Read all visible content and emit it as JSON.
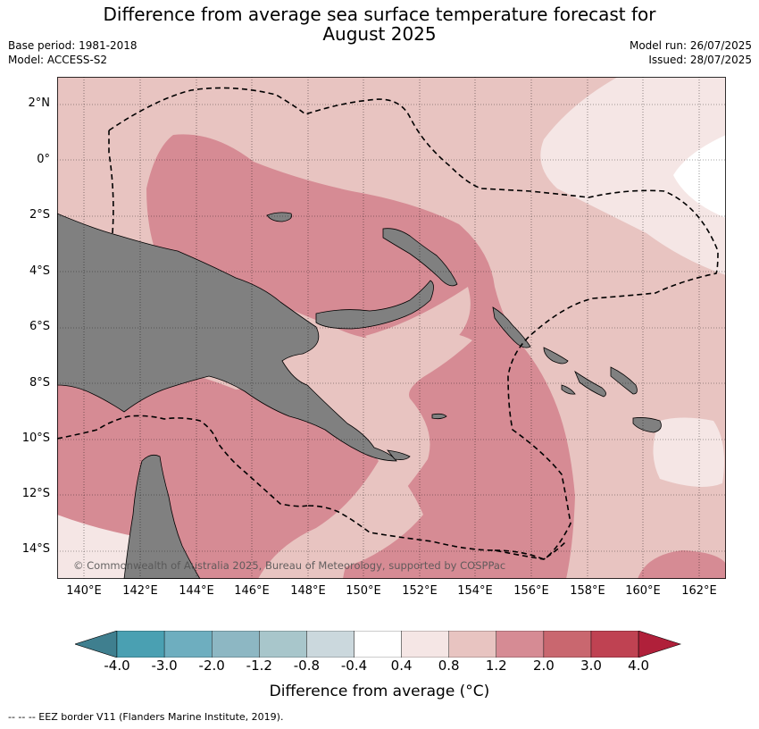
{
  "title_line1": "Difference from average sea surface temperature forecast for",
  "title_line2": "August 2025",
  "base_period": "Base period: 1981-2018",
  "model": "Model: ACCESS-S2",
  "model_run": "Model run: 26/07/2025",
  "issued": "Issued: 28/07/2025",
  "copyright": "© Commonwealth of Australia 2025, Bureau of Meteorology, supported by COSPPac",
  "lat_labels": [
    "2°N",
    "0°",
    "2°S",
    "4°S",
    "6°S",
    "8°S",
    "10°S",
    "12°S",
    "14°S"
  ],
  "lon_labels": [
    "140°E",
    "142°E",
    "144°E",
    "146°E",
    "148°E",
    "150°E",
    "152°E",
    "154°E",
    "156°E",
    "158°E",
    "160°E",
    "162°E"
  ],
  "colorbar": {
    "ticks": [
      "-4.0",
      "-3.0",
      "-2.0",
      "-1.2",
      "-0.8",
      "-0.4",
      "0.4",
      "0.8",
      "1.2",
      "2.0",
      "3.0",
      "4.0"
    ],
    "colors": [
      "#3f7f8f",
      "#4aa0b2",
      "#6eaebf",
      "#8db7c3",
      "#a8c6cb",
      "#cbd8dd",
      "#ffffff",
      "#f5e6e5",
      "#e8c4c1",
      "#d68b94",
      "#c9676f",
      "#bf4252",
      "#b0203a"
    ],
    "label": "Difference from average (°C)"
  },
  "legend": "--  --  -- EEZ border V11 (Flanders Marine Institute, 2019).",
  "map_colors": {
    "land": "#808080",
    "anomaly_0_8_1_2": "#e8c4c1",
    "anomaly_1_2_2_0": "#d68b94",
    "anomaly_0_4_0_8": "#f5e6e5",
    "neutral": "#ffffff"
  }
}
